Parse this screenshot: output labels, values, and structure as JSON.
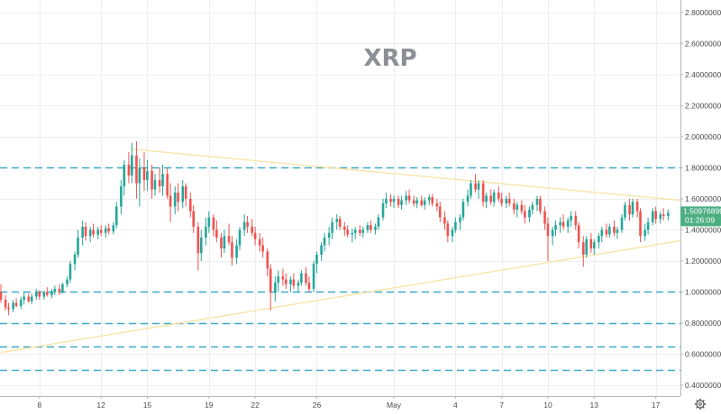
{
  "chart_data": {
    "type": "candlestick",
    "title": "XRP",
    "y_axis": {
      "min": 0.33,
      "max": 2.88,
      "ticks": [
        0.4,
        0.6,
        0.8,
        1.0,
        1.2,
        1.4,
        1.6,
        1.8,
        2.0,
        2.2,
        2.4,
        2.6,
        2.8
      ],
      "tick_labels": [
        "0.40000000",
        "0.60000000",
        "0.80000000",
        "1.00000000",
        "1.20000000",
        "1.40000000",
        "1.60000000",
        "1.80000000",
        "2.00000000",
        "2.20000000",
        "2.40000000",
        "2.60000000",
        "2.80000000"
      ],
      "position": "right"
    },
    "x_axis": {
      "start_day": 5.5,
      "end_day": 49.6,
      "ticks": [
        {
          "day": 8,
          "label": "8"
        },
        {
          "day": 12,
          "label": "12"
        },
        {
          "day": 15,
          "label": "15"
        },
        {
          "day": 19,
          "label": "19"
        },
        {
          "day": 22,
          "label": "22"
        },
        {
          "day": 26,
          "label": "26"
        },
        {
          "day": 31,
          "label": "May"
        },
        {
          "day": 35,
          "label": "4"
        },
        {
          "day": 38,
          "label": "7"
        },
        {
          "day": 41,
          "label": "10"
        },
        {
          "day": 44,
          "label": "13"
        },
        {
          "day": 48,
          "label": "17"
        }
      ]
    },
    "grid": true,
    "horizontal_levels": [
      1.8,
      1.0,
      0.8,
      0.65,
      0.5
    ],
    "trendlines": [
      {
        "from": [
          13.9,
          1.92
        ],
        "to": [
          49.6,
          1.59
        ]
      },
      {
        "from": [
          5.5,
          0.61
        ],
        "to": [
          49.6,
          1.33
        ]
      }
    ],
    "last_price": {
      "value": 1.50976899,
      "label": "1.50976899",
      "countdown": "01:26:09"
    },
    "candles": [
      [
        5.5,
        1.0,
        1.05,
        0.93,
        0.95
      ],
      [
        5.8,
        0.95,
        0.98,
        0.88,
        0.9
      ],
      [
        6.0,
        0.9,
        0.93,
        0.85,
        0.89
      ],
      [
        6.3,
        0.89,
        0.95,
        0.87,
        0.93
      ],
      [
        6.5,
        0.93,
        0.96,
        0.9,
        0.91
      ],
      [
        6.8,
        0.91,
        0.97,
        0.89,
        0.95
      ],
      [
        7.0,
        0.95,
        1.0,
        0.92,
        0.97
      ],
      [
        7.3,
        0.97,
        0.99,
        0.93,
        0.94
      ],
      [
        7.5,
        0.94,
        0.99,
        0.92,
        0.97
      ],
      [
        7.8,
        0.97,
        1.02,
        0.95,
        1.0
      ],
      [
        8.0,
        1.0,
        1.01,
        0.95,
        0.97
      ],
      [
        8.3,
        0.97,
        1.01,
        0.95,
        1.0
      ],
      [
        8.5,
        1.0,
        1.03,
        0.97,
        0.98
      ],
      [
        8.8,
        0.98,
        1.02,
        0.96,
        1.0
      ],
      [
        9.0,
        1.0,
        1.04,
        0.98,
        1.02
      ],
      [
        9.3,
        1.02,
        1.05,
        0.98,
        1.0
      ],
      [
        9.5,
        1.0,
        1.06,
        0.99,
        1.05
      ],
      [
        9.8,
        1.05,
        1.1,
        1.03,
        1.08
      ],
      [
        10.0,
        1.08,
        1.2,
        1.06,
        1.18
      ],
      [
        10.3,
        1.18,
        1.26,
        1.14,
        1.24
      ],
      [
        10.5,
        1.24,
        1.4,
        1.22,
        1.35
      ],
      [
        10.8,
        1.35,
        1.46,
        1.3,
        1.42
      ],
      [
        11.0,
        1.42,
        1.45,
        1.33,
        1.36
      ],
      [
        11.3,
        1.36,
        1.42,
        1.32,
        1.4
      ],
      [
        11.5,
        1.4,
        1.44,
        1.35,
        1.37
      ],
      [
        11.8,
        1.37,
        1.42,
        1.34,
        1.4
      ],
      [
        12.0,
        1.4,
        1.43,
        1.36,
        1.38
      ],
      [
        12.3,
        1.38,
        1.43,
        1.35,
        1.41
      ],
      [
        12.5,
        1.41,
        1.44,
        1.37,
        1.39
      ],
      [
        12.8,
        1.39,
        1.45,
        1.37,
        1.43
      ],
      [
        13.0,
        1.43,
        1.58,
        1.41,
        1.55
      ],
      [
        13.3,
        1.55,
        1.72,
        1.5,
        1.68
      ],
      [
        13.5,
        1.68,
        1.85,
        1.62,
        1.82
      ],
      [
        13.8,
        1.82,
        1.9,
        1.7,
        1.75
      ],
      [
        14.0,
        1.75,
        1.96,
        1.7,
        1.88
      ],
      [
        14.3,
        1.88,
        1.97,
        1.6,
        1.7
      ],
      [
        14.5,
        1.7,
        1.86,
        1.55,
        1.8
      ],
      [
        14.8,
        1.8,
        1.9,
        1.65,
        1.72
      ],
      [
        15.0,
        1.72,
        1.85,
        1.65,
        1.78
      ],
      [
        15.3,
        1.78,
        1.82,
        1.6,
        1.66
      ],
      [
        15.5,
        1.66,
        1.76,
        1.62,
        1.72
      ],
      [
        15.8,
        1.72,
        1.8,
        1.64,
        1.68
      ],
      [
        16.0,
        1.68,
        1.82,
        1.62,
        1.76
      ],
      [
        16.3,
        1.76,
        1.8,
        1.6,
        1.62
      ],
      [
        16.5,
        1.62,
        1.7,
        1.45,
        1.55
      ],
      [
        16.8,
        1.55,
        1.68,
        1.5,
        1.64
      ],
      [
        17.0,
        1.64,
        1.7,
        1.52,
        1.58
      ],
      [
        17.3,
        1.58,
        1.72,
        1.54,
        1.68
      ],
      [
        17.5,
        1.68,
        1.7,
        1.55,
        1.6
      ],
      [
        17.8,
        1.6,
        1.64,
        1.48,
        1.52
      ],
      [
        18.0,
        1.52,
        1.56,
        1.38,
        1.42
      ],
      [
        18.3,
        1.42,
        1.45,
        1.14,
        1.25
      ],
      [
        18.5,
        1.25,
        1.4,
        1.2,
        1.35
      ],
      [
        18.8,
        1.35,
        1.48,
        1.3,
        1.42
      ],
      [
        19.0,
        1.42,
        1.52,
        1.38,
        1.48
      ],
      [
        19.3,
        1.48,
        1.5,
        1.36,
        1.4
      ],
      [
        19.5,
        1.4,
        1.46,
        1.32,
        1.35
      ],
      [
        19.8,
        1.35,
        1.38,
        1.22,
        1.28
      ],
      [
        20.0,
        1.28,
        1.4,
        1.25,
        1.36
      ],
      [
        20.3,
        1.36,
        1.44,
        1.3,
        1.32
      ],
      [
        20.5,
        1.32,
        1.36,
        1.17,
        1.22
      ],
      [
        20.8,
        1.22,
        1.34,
        1.18,
        1.3
      ],
      [
        21.0,
        1.3,
        1.42,
        1.27,
        1.4
      ],
      [
        21.3,
        1.4,
        1.5,
        1.36,
        1.45
      ],
      [
        21.5,
        1.45,
        1.49,
        1.38,
        1.42
      ],
      [
        21.8,
        1.42,
        1.47,
        1.36,
        1.38
      ],
      [
        22.0,
        1.38,
        1.42,
        1.3,
        1.34
      ],
      [
        22.3,
        1.34,
        1.38,
        1.26,
        1.3
      ],
      [
        22.5,
        1.3,
        1.35,
        1.22,
        1.26
      ],
      [
        22.8,
        1.26,
        1.28,
        1.1,
        1.15
      ],
      [
        23.0,
        1.15,
        1.18,
        0.88,
        1.0
      ],
      [
        23.3,
        1.0,
        1.1,
        0.94,
        1.06
      ],
      [
        23.5,
        1.06,
        1.14,
        1.0,
        1.1
      ],
      [
        23.8,
        1.1,
        1.15,
        1.04,
        1.08
      ],
      [
        24.0,
        1.08,
        1.12,
        1.02,
        1.05
      ],
      [
        24.3,
        1.05,
        1.1,
        1.0,
        1.08
      ],
      [
        24.5,
        1.08,
        1.12,
        1.02,
        1.04
      ],
      [
        24.8,
        1.04,
        1.08,
        1.0,
        1.06
      ],
      [
        25.0,
        1.06,
        1.14,
        1.04,
        1.12
      ],
      [
        25.3,
        1.12,
        1.16,
        1.04,
        1.06
      ],
      [
        25.5,
        1.06,
        1.1,
        1.0,
        1.02
      ],
      [
        25.8,
        1.02,
        1.2,
        1.0,
        1.18
      ],
      [
        26.0,
        1.18,
        1.26,
        1.12,
        1.24
      ],
      [
        26.3,
        1.24,
        1.32,
        1.2,
        1.3
      ],
      [
        26.5,
        1.3,
        1.38,
        1.26,
        1.35
      ],
      [
        26.8,
        1.35,
        1.42,
        1.3,
        1.38
      ],
      [
        27.0,
        1.38,
        1.48,
        1.34,
        1.45
      ],
      [
        27.3,
        1.45,
        1.5,
        1.4,
        1.47
      ],
      [
        27.5,
        1.47,
        1.49,
        1.4,
        1.42
      ],
      [
        27.8,
        1.42,
        1.45,
        1.36,
        1.4
      ],
      [
        28.0,
        1.4,
        1.43,
        1.35,
        1.37
      ],
      [
        28.3,
        1.37,
        1.41,
        1.32,
        1.38
      ],
      [
        28.5,
        1.38,
        1.42,
        1.34,
        1.4
      ],
      [
        28.8,
        1.4,
        1.43,
        1.36,
        1.38
      ],
      [
        29.0,
        1.38,
        1.42,
        1.35,
        1.4
      ],
      [
        29.3,
        1.4,
        1.45,
        1.38,
        1.43
      ],
      [
        29.5,
        1.43,
        1.46,
        1.38,
        1.4
      ],
      [
        29.8,
        1.4,
        1.44,
        1.37,
        1.42
      ],
      [
        30.0,
        1.42,
        1.5,
        1.4,
        1.48
      ],
      [
        30.3,
        1.48,
        1.6,
        1.46,
        1.57
      ],
      [
        30.5,
        1.57,
        1.64,
        1.54,
        1.6
      ],
      [
        30.8,
        1.6,
        1.63,
        1.55,
        1.58
      ],
      [
        31.0,
        1.58,
        1.62,
        1.54,
        1.6
      ],
      [
        31.3,
        1.6,
        1.62,
        1.54,
        1.56
      ],
      [
        31.5,
        1.56,
        1.62,
        1.53,
        1.59
      ],
      [
        31.8,
        1.59,
        1.65,
        1.56,
        1.62
      ],
      [
        32.0,
        1.62,
        1.66,
        1.57,
        1.59
      ],
      [
        32.3,
        1.59,
        1.62,
        1.55,
        1.57
      ],
      [
        32.5,
        1.57,
        1.61,
        1.54,
        1.59
      ],
      [
        32.8,
        1.59,
        1.62,
        1.55,
        1.56
      ],
      [
        33.0,
        1.56,
        1.61,
        1.53,
        1.59
      ],
      [
        33.3,
        1.59,
        1.63,
        1.56,
        1.61
      ],
      [
        33.5,
        1.61,
        1.63,
        1.55,
        1.57
      ],
      [
        33.8,
        1.57,
        1.6,
        1.52,
        1.55
      ],
      [
        34.0,
        1.55,
        1.58,
        1.45,
        1.48
      ],
      [
        34.3,
        1.48,
        1.52,
        1.4,
        1.44
      ],
      [
        34.5,
        1.44,
        1.46,
        1.32,
        1.36
      ],
      [
        34.8,
        1.36,
        1.42,
        1.32,
        1.4
      ],
      [
        35.0,
        1.4,
        1.48,
        1.38,
        1.45
      ],
      [
        35.3,
        1.45,
        1.5,
        1.4,
        1.48
      ],
      [
        35.5,
        1.48,
        1.6,
        1.46,
        1.58
      ],
      [
        35.8,
        1.58,
        1.66,
        1.55,
        1.62
      ],
      [
        36.0,
        1.62,
        1.72,
        1.6,
        1.7
      ],
      [
        36.3,
        1.7,
        1.76,
        1.64,
        1.66
      ],
      [
        36.5,
        1.66,
        1.72,
        1.6,
        1.7
      ],
      [
        36.8,
        1.7,
        1.72,
        1.55,
        1.58
      ],
      [
        37.0,
        1.58,
        1.64,
        1.54,
        1.62
      ],
      [
        37.3,
        1.62,
        1.66,
        1.56,
        1.58
      ],
      [
        37.5,
        1.58,
        1.66,
        1.55,
        1.64
      ],
      [
        37.8,
        1.64,
        1.68,
        1.58,
        1.6
      ],
      [
        38.0,
        1.6,
        1.64,
        1.55,
        1.57
      ],
      [
        38.3,
        1.57,
        1.62,
        1.54,
        1.6
      ],
      [
        38.5,
        1.6,
        1.64,
        1.55,
        1.57
      ],
      [
        38.8,
        1.57,
        1.6,
        1.5,
        1.53
      ],
      [
        39.0,
        1.53,
        1.58,
        1.48,
        1.56
      ],
      [
        39.3,
        1.56,
        1.59,
        1.5,
        1.52
      ],
      [
        39.5,
        1.52,
        1.56,
        1.44,
        1.48
      ],
      [
        39.8,
        1.48,
        1.55,
        1.45,
        1.53
      ],
      [
        40.0,
        1.53,
        1.58,
        1.5,
        1.56
      ],
      [
        40.3,
        1.56,
        1.62,
        1.52,
        1.6
      ],
      [
        40.5,
        1.6,
        1.62,
        1.5,
        1.52
      ],
      [
        40.8,
        1.52,
        1.55,
        1.4,
        1.44
      ],
      [
        41.0,
        1.44,
        1.48,
        1.2,
        1.36
      ],
      [
        41.3,
        1.36,
        1.42,
        1.3,
        1.4
      ],
      [
        41.5,
        1.4,
        1.46,
        1.36,
        1.43
      ],
      [
        41.8,
        1.43,
        1.48,
        1.38,
        1.45
      ],
      [
        42.0,
        1.45,
        1.5,
        1.4,
        1.42
      ],
      [
        42.3,
        1.42,
        1.48,
        1.38,
        1.46
      ],
      [
        42.5,
        1.46,
        1.52,
        1.42,
        1.49
      ],
      [
        42.8,
        1.49,
        1.52,
        1.4,
        1.43
      ],
      [
        43.0,
        1.43,
        1.45,
        1.28,
        1.32
      ],
      [
        43.3,
        1.32,
        1.36,
        1.16,
        1.24
      ],
      [
        43.5,
        1.24,
        1.36,
        1.22,
        1.34
      ],
      [
        43.8,
        1.34,
        1.38,
        1.25,
        1.28
      ],
      [
        44.0,
        1.28,
        1.34,
        1.24,
        1.32
      ],
      [
        44.3,
        1.32,
        1.38,
        1.28,
        1.36
      ],
      [
        44.5,
        1.36,
        1.42,
        1.32,
        1.4
      ],
      [
        44.8,
        1.4,
        1.44,
        1.35,
        1.37
      ],
      [
        45.0,
        1.37,
        1.44,
        1.35,
        1.42
      ],
      [
        45.3,
        1.42,
        1.46,
        1.36,
        1.38
      ],
      [
        45.5,
        1.38,
        1.42,
        1.34,
        1.4
      ],
      [
        45.8,
        1.4,
        1.5,
        1.38,
        1.48
      ],
      [
        46.0,
        1.48,
        1.58,
        1.46,
        1.56
      ],
      [
        46.3,
        1.56,
        1.6,
        1.46,
        1.5
      ],
      [
        46.5,
        1.5,
        1.6,
        1.48,
        1.58
      ],
      [
        46.8,
        1.58,
        1.6,
        1.48,
        1.52
      ],
      [
        47.0,
        1.52,
        1.54,
        1.32,
        1.36
      ],
      [
        47.3,
        1.36,
        1.44,
        1.33,
        1.4
      ],
      [
        47.5,
        1.4,
        1.48,
        1.37,
        1.45
      ],
      [
        47.8,
        1.45,
        1.54,
        1.43,
        1.52
      ],
      [
        48.0,
        1.52,
        1.55,
        1.44,
        1.47
      ],
      [
        48.3,
        1.47,
        1.52,
        1.44,
        1.5
      ],
      [
        48.5,
        1.5,
        1.54,
        1.46,
        1.49
      ],
      [
        48.8,
        1.49,
        1.53,
        1.46,
        1.51
      ]
    ]
  },
  "colors": {
    "up": "#26a69a",
    "down": "#ef5350",
    "level": "#3fa9c8",
    "trendline": "#f7e3a3",
    "grid": "#eeeeee",
    "price_tag": "#4caf82"
  },
  "settings_icon": "gear-icon"
}
